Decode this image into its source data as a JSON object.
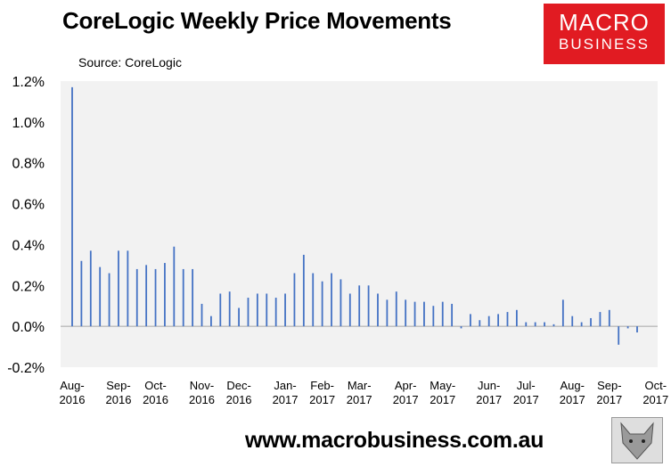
{
  "header": {
    "title": "CoreLogic Weekly Price Movements",
    "source": "Source: CoreLogic"
  },
  "logo": {
    "line1": "MACRO",
    "line2": "BUSINESS"
  },
  "footer": {
    "url": "www.macrobusiness.com.au"
  },
  "colors": {
    "bar": "#4472c4",
    "plot_bg": "#f2f2f2",
    "logo_bg": "#e11b22"
  },
  "chart_data": {
    "type": "bar",
    "title": "CoreLogic Weekly Price Movements",
    "ylim": [
      -0.2,
      1.2
    ],
    "yticks": [
      -0.2,
      0.0,
      0.2,
      0.4,
      0.6,
      0.8,
      1.0,
      1.2
    ],
    "ytick_labels": [
      "-0.2%",
      "0.0%",
      "0.2%",
      "0.4%",
      "0.6%",
      "0.8%",
      "1.0%",
      "1.2%"
    ],
    "grid": false,
    "x_tick_labels": [
      {
        "month": "Aug-",
        "year": "2016",
        "week": 0
      },
      {
        "month": "Sep-",
        "year": "2016",
        "week": 5
      },
      {
        "month": "Oct-",
        "year": "2016",
        "week": 9
      },
      {
        "month": "Nov-",
        "year": "2016",
        "week": 14
      },
      {
        "month": "Dec-",
        "year": "2016",
        "week": 18
      },
      {
        "month": "Jan-",
        "year": "2017",
        "week": 23
      },
      {
        "month": "Feb-",
        "year": "2017",
        "week": 27
      },
      {
        "month": "Mar-",
        "year": "2017",
        "week": 31
      },
      {
        "month": "Apr-",
        "year": "2017",
        "week": 36
      },
      {
        "month": "May-",
        "year": "2017",
        "week": 40
      },
      {
        "month": "Jun-",
        "year": "2017",
        "week": 45
      },
      {
        "month": "Jul-",
        "year": "2017",
        "week": 49
      },
      {
        "month": "Aug-",
        "year": "2017",
        "week": 54
      },
      {
        "month": "Sep-",
        "year": "2017",
        "week": 58
      },
      {
        "month": "Oct-",
        "year": "2017",
        "week": 63
      }
    ],
    "series": [
      {
        "values": [
          1.17,
          0.32,
          0.37,
          0.29,
          0.26,
          0.37,
          0.37,
          0.28,
          0.3,
          0.28,
          0.31,
          0.39,
          0.28,
          0.28,
          0.11,
          0.05,
          0.16,
          0.17,
          0.09,
          0.14,
          0.16,
          0.16,
          0.14,
          0.16,
          0.26,
          0.35,
          0.26,
          0.22,
          0.26,
          0.23,
          0.16,
          0.2,
          0.2,
          0.16,
          0.13,
          0.17,
          0.13,
          0.12,
          0.12,
          0.1,
          0.12,
          0.11,
          -0.01,
          0.06,
          0.03,
          0.05,
          0.06,
          0.07,
          0.08,
          0.02,
          0.02,
          0.02,
          0.01,
          0.13,
          0.05,
          0.02,
          0.04,
          0.07,
          0.08,
          -0.09,
          -0.01,
          -0.03
        ]
      }
    ]
  }
}
